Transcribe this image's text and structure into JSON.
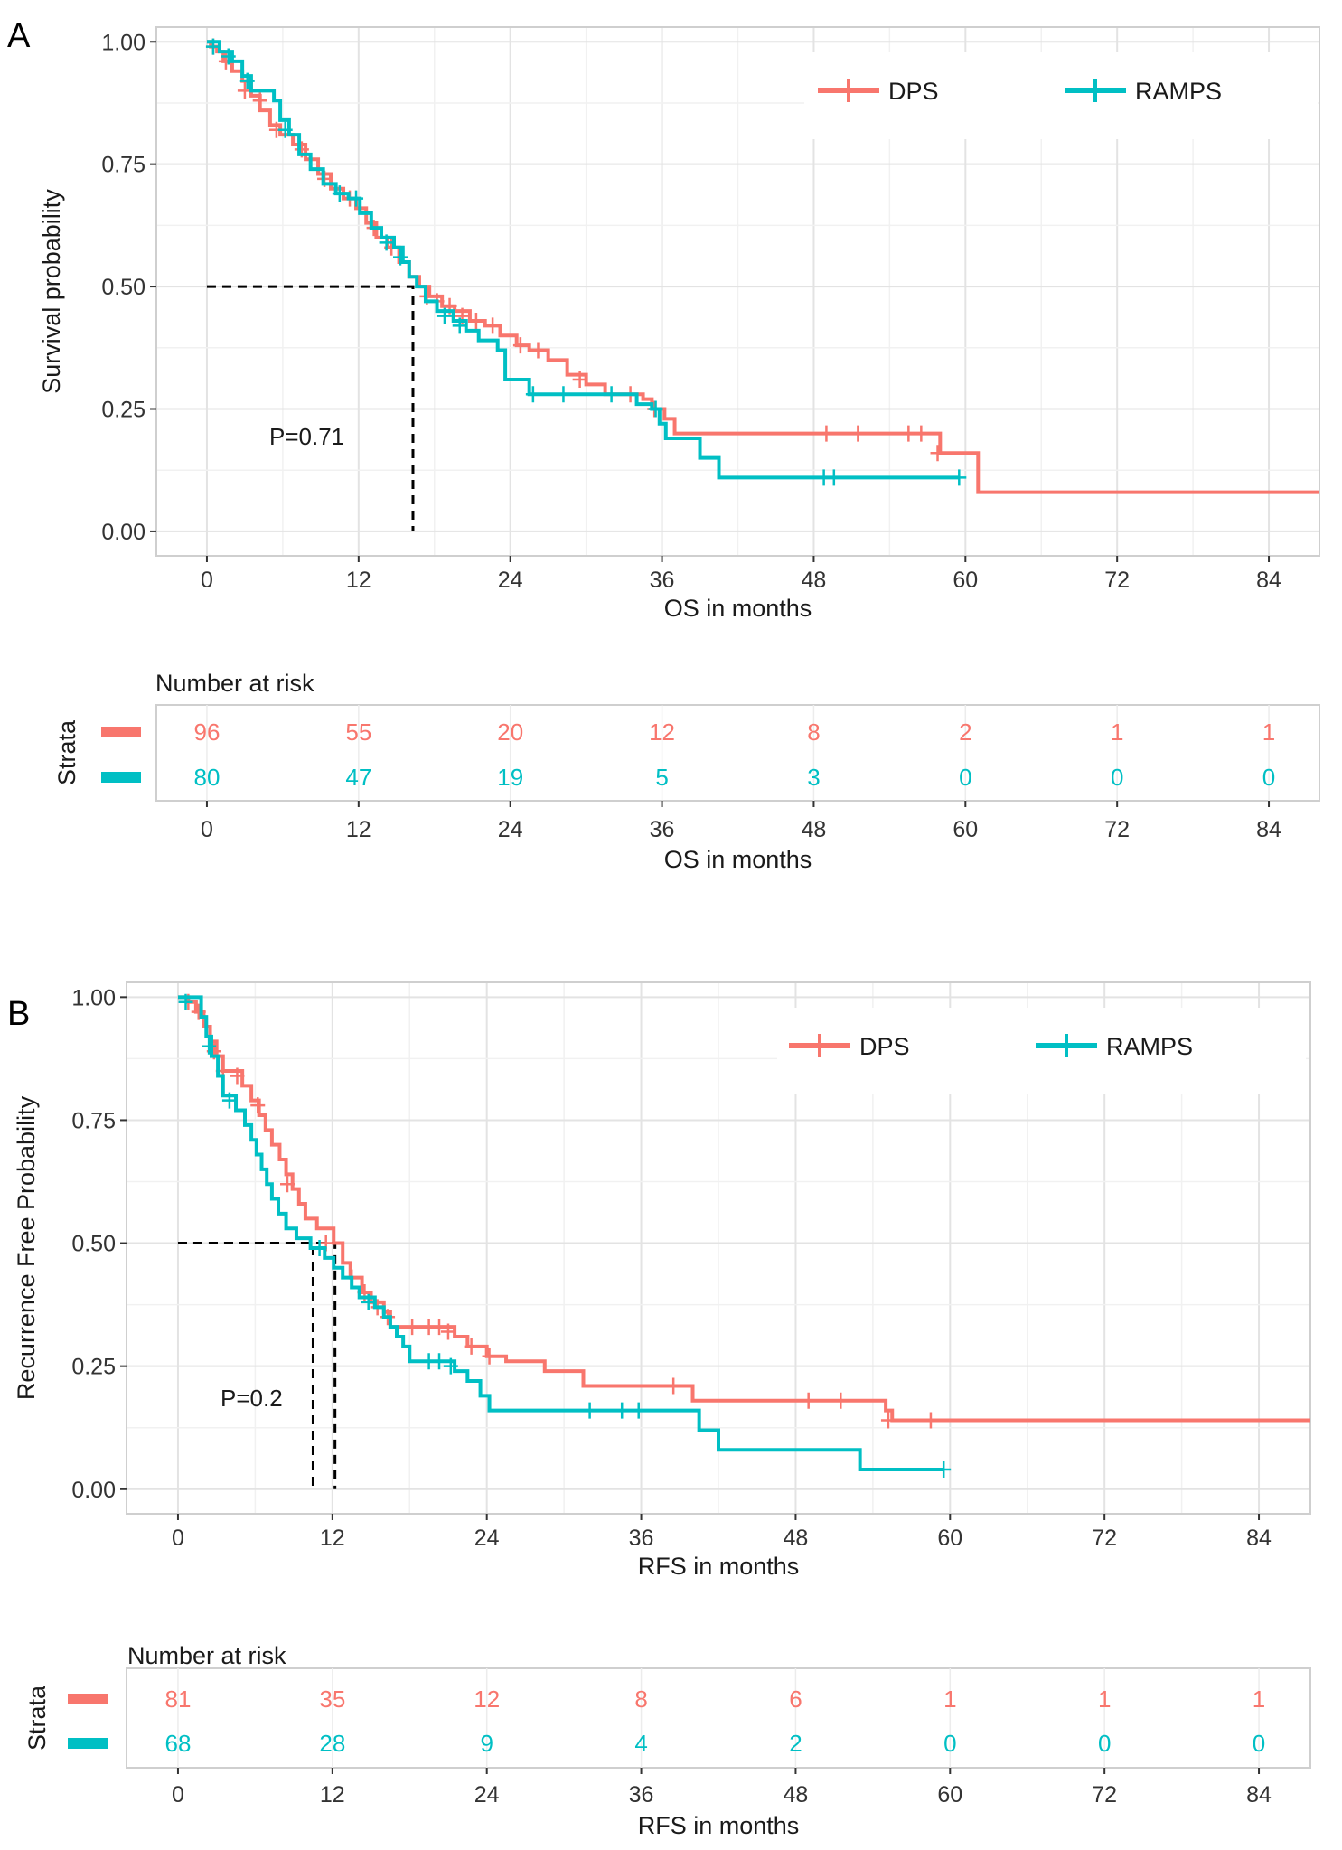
{
  "colors": {
    "dps": "#F8766D",
    "ramps": "#00BFC4"
  },
  "chart_data": [
    {
      "type": "line",
      "panel_label": "A",
      "ylabel": "Survival probability",
      "xlabel": "OS in months",
      "xticks": [
        0,
        12,
        24,
        36,
        48,
        60,
        72,
        84
      ],
      "yticks": [
        "0.00",
        "0.25",
        "0.50",
        "0.75",
        "1.00"
      ],
      "xlim": [
        -4,
        88
      ],
      "ylim": [
        -0.05,
        1.03
      ],
      "grid": true,
      "legend": "top-right",
      "pvalue": "P=0.71",
      "median_lines": [
        [
          16.3,
          0.5
        ]
      ],
      "series": [
        {
          "name": "DPS",
          "color_key": "dps",
          "steps": [
            [
              0,
              1.0
            ],
            [
              0.3,
              0.99
            ],
            [
              0.8,
              0.98
            ],
            [
              1.3,
              0.96
            ],
            [
              2,
              0.94
            ],
            [
              2.8,
              0.92
            ],
            [
              3.5,
              0.89
            ],
            [
              4.2,
              0.86
            ],
            [
              5,
              0.83
            ],
            [
              5.8,
              0.81
            ],
            [
              6.8,
              0.79
            ],
            [
              7.8,
              0.76
            ],
            [
              8.8,
              0.73
            ],
            [
              9.8,
              0.7
            ],
            [
              10.8,
              0.68
            ],
            [
              11.8,
              0.66
            ],
            [
              12.6,
              0.63
            ],
            [
              13.4,
              0.6
            ],
            [
              14.3,
              0.58
            ],
            [
              15.2,
              0.55
            ],
            [
              16,
              0.52
            ],
            [
              16.8,
              0.5
            ],
            [
              17.6,
              0.48
            ],
            [
              18.6,
              0.46
            ],
            [
              19.6,
              0.45
            ],
            [
              20.8,
              0.43
            ],
            [
              22,
              0.42
            ],
            [
              23.2,
              0.4
            ],
            [
              24.5,
              0.38
            ],
            [
              25.5,
              0.37
            ],
            [
              27,
              0.35
            ],
            [
              28.5,
              0.32
            ],
            [
              30,
              0.3
            ],
            [
              31.5,
              0.28
            ],
            [
              34.5,
              0.27
            ],
            [
              35.2,
              0.25
            ],
            [
              36.2,
              0.23
            ],
            [
              37,
              0.2
            ],
            [
              57.5,
              0.2
            ],
            [
              58,
              0.16
            ],
            [
              60.5,
              0.16
            ],
            [
              61,
              0.08
            ],
            [
              88,
              0.08
            ]
          ],
          "censors": [
            [
              0.5,
              0.99
            ],
            [
              1.5,
              0.96
            ],
            [
              3,
              0.9
            ],
            [
              4.2,
              0.88
            ],
            [
              5.5,
              0.82
            ],
            [
              7.5,
              0.78
            ],
            [
              9.3,
              0.72
            ],
            [
              11.3,
              0.68
            ],
            [
              13.2,
              0.62
            ],
            [
              14.6,
              0.58
            ],
            [
              17.4,
              0.48
            ],
            [
              18.2,
              0.47
            ],
            [
              19.2,
              0.46
            ],
            [
              20.2,
              0.44
            ],
            [
              21.3,
              0.43
            ],
            [
              22.6,
              0.42
            ],
            [
              24.8,
              0.38
            ],
            [
              26.2,
              0.37
            ],
            [
              29.5,
              0.31
            ],
            [
              33.5,
              0.28
            ],
            [
              35.4,
              0.25
            ],
            [
              49,
              0.2
            ],
            [
              51.5,
              0.2
            ],
            [
              55.5,
              0.2
            ],
            [
              56.5,
              0.2
            ],
            [
              57.8,
              0.16
            ]
          ]
        },
        {
          "name": "RAMPS",
          "color_key": "ramps",
          "steps": [
            [
              0,
              1.0
            ],
            [
              1,
              0.98
            ],
            [
              2,
              0.96
            ],
            [
              2.8,
              0.93
            ],
            [
              3.5,
              0.9
            ],
            [
              5.3,
              0.88
            ],
            [
              5.8,
              0.84
            ],
            [
              6.5,
              0.81
            ],
            [
              7.3,
              0.77
            ],
            [
              8.2,
              0.74
            ],
            [
              9.2,
              0.71
            ],
            [
              10.2,
              0.69
            ],
            [
              11.2,
              0.68
            ],
            [
              12.1,
              0.65
            ],
            [
              13,
              0.62
            ],
            [
              13.8,
              0.6
            ],
            [
              14.8,
              0.58
            ],
            [
              15.5,
              0.55
            ],
            [
              16,
              0.52
            ],
            [
              16.6,
              0.5
            ],
            [
              17.3,
              0.47
            ],
            [
              18.2,
              0.45
            ],
            [
              19.5,
              0.43
            ],
            [
              20.5,
              0.41
            ],
            [
              21.5,
              0.39
            ],
            [
              23,
              0.37
            ],
            [
              23.6,
              0.31
            ],
            [
              25.5,
              0.28
            ],
            [
              33,
              0.28
            ],
            [
              34,
              0.26
            ],
            [
              35.2,
              0.25
            ],
            [
              35.8,
              0.22
            ],
            [
              36.3,
              0.19
            ],
            [
              39,
              0.15
            ],
            [
              40.5,
              0.11
            ],
            [
              59.5,
              0.11
            ]
          ],
          "censors": [
            [
              0.5,
              0.99
            ],
            [
              1.7,
              0.97
            ],
            [
              3.2,
              0.92
            ],
            [
              6.2,
              0.82
            ],
            [
              10.5,
              0.69
            ],
            [
              11.8,
              0.68
            ],
            [
              14.2,
              0.59
            ],
            [
              15.3,
              0.56
            ],
            [
              18.8,
              0.44
            ],
            [
              20,
              0.42
            ],
            [
              25.8,
              0.28
            ],
            [
              28.2,
              0.28
            ],
            [
              32,
              0.28
            ],
            [
              35.5,
              0.25
            ],
            [
              48.8,
              0.11
            ],
            [
              49.6,
              0.11
            ],
            [
              59.5,
              0.11
            ]
          ]
        }
      ],
      "risk_table": {
        "title": "Number at risk",
        "ylabel": "Strata",
        "times": [
          0,
          12,
          24,
          36,
          48,
          60,
          72,
          84
        ],
        "rows": [
          {
            "name": "DPS",
            "color_key": "dps",
            "values": [
              "96",
              "55",
              "20",
              "12",
              "8",
              "2",
              "1",
              "1"
            ]
          },
          {
            "name": "RAMPS",
            "color_key": "ramps",
            "values": [
              "80",
              "47",
              "19",
              "5",
              "3",
              "0",
              "0",
              "0"
            ]
          }
        ],
        "xlabel": "OS in months"
      }
    },
    {
      "type": "line",
      "panel_label": "B",
      "ylabel": "Recurrence Free Probability",
      "xlabel": "RFS in months",
      "xticks": [
        0,
        12,
        24,
        36,
        48,
        60,
        72,
        84
      ],
      "yticks": [
        "0.00",
        "0.25",
        "0.50",
        "0.75",
        "1.00"
      ],
      "xlim": [
        -4,
        88
      ],
      "ylim": [
        -0.05,
        1.03
      ],
      "grid": true,
      "legend": "top-right",
      "pvalue": "P=0.2",
      "median_lines": [
        [
          10.5,
          0.5
        ],
        [
          12.2,
          0.5
        ]
      ],
      "series": [
        {
          "name": "DPS",
          "color_key": "dps",
          "steps": [
            [
              0,
              1.0
            ],
            [
              0.8,
              0.99
            ],
            [
              1.4,
              0.97
            ],
            [
              2,
              0.94
            ],
            [
              2.5,
              0.91
            ],
            [
              3,
              0.88
            ],
            [
              3.5,
              0.85
            ],
            [
              5,
              0.82
            ],
            [
              5.7,
              0.79
            ],
            [
              6.3,
              0.76
            ],
            [
              6.8,
              0.73
            ],
            [
              7.3,
              0.7
            ],
            [
              7.9,
              0.67
            ],
            [
              8.4,
              0.64
            ],
            [
              8.9,
              0.61
            ],
            [
              9.4,
              0.58
            ],
            [
              9.9,
              0.55
            ],
            [
              10.8,
              0.53
            ],
            [
              12.1,
              0.5
            ],
            [
              12.8,
              0.46
            ],
            [
              13.4,
              0.43
            ],
            [
              14.3,
              0.4
            ],
            [
              15,
              0.38
            ],
            [
              16,
              0.36
            ],
            [
              16.5,
              0.33
            ],
            [
              21.5,
              0.31
            ],
            [
              22.5,
              0.29
            ],
            [
              24,
              0.27
            ],
            [
              25.5,
              0.26
            ],
            [
              28.5,
              0.24
            ],
            [
              31.5,
              0.21
            ],
            [
              40,
              0.18
            ],
            [
              55,
              0.16
            ],
            [
              55.5,
              0.14
            ],
            [
              88,
              0.14
            ]
          ],
          "censors": [
            [
              0.8,
              0.99
            ],
            [
              1.6,
              0.97
            ],
            [
              2.8,
              0.89
            ],
            [
              3.5,
              0.85
            ],
            [
              4.6,
              0.84
            ],
            [
              6.2,
              0.78
            ],
            [
              8.5,
              0.62
            ],
            [
              11.5,
              0.5
            ],
            [
              13.5,
              0.43
            ],
            [
              14.5,
              0.4
            ],
            [
              15.5,
              0.37
            ],
            [
              16.3,
              0.35
            ],
            [
              18.2,
              0.33
            ],
            [
              19.5,
              0.33
            ],
            [
              20.3,
              0.33
            ],
            [
              21,
              0.32
            ],
            [
              22.8,
              0.29
            ],
            [
              24.2,
              0.27
            ],
            [
              38.5,
              0.21
            ],
            [
              49,
              0.18
            ],
            [
              51.5,
              0.18
            ],
            [
              55.2,
              0.14
            ],
            [
              58.5,
              0.14
            ]
          ]
        },
        {
          "name": "RAMPS",
          "color_key": "ramps",
          "steps": [
            [
              0,
              1.0
            ],
            [
              1.8,
              0.96
            ],
            [
              2.2,
              0.92
            ],
            [
              2.6,
              0.88
            ],
            [
              3.1,
              0.84
            ],
            [
              3.5,
              0.8
            ],
            [
              4.5,
              0.77
            ],
            [
              5.2,
              0.74
            ],
            [
              5.7,
              0.71
            ],
            [
              6.1,
              0.68
            ],
            [
              6.5,
              0.65
            ],
            [
              6.9,
              0.62
            ],
            [
              7.3,
              0.59
            ],
            [
              7.8,
              0.56
            ],
            [
              8.4,
              0.53
            ],
            [
              9.2,
              0.51
            ],
            [
              10.3,
              0.49
            ],
            [
              11.4,
              0.47
            ],
            [
              12.1,
              0.45
            ],
            [
              12.8,
              0.43
            ],
            [
              13.5,
              0.41
            ],
            [
              14.1,
              0.39
            ],
            [
              15.3,
              0.37
            ],
            [
              16,
              0.35
            ],
            [
              16.5,
              0.33
            ],
            [
              17,
              0.31
            ],
            [
              17.5,
              0.29
            ],
            [
              18,
              0.26
            ],
            [
              21.5,
              0.24
            ],
            [
              22.5,
              0.22
            ],
            [
              23.5,
              0.19
            ],
            [
              24.2,
              0.16
            ],
            [
              40,
              0.16
            ],
            [
              40.5,
              0.12
            ],
            [
              42,
              0.08
            ],
            [
              52.5,
              0.08
            ],
            [
              53,
              0.04
            ],
            [
              59.5,
              0.04
            ]
          ],
          "censors": [
            [
              0.6,
              0.99
            ],
            [
              2.4,
              0.9
            ],
            [
              4,
              0.79
            ],
            [
              11,
              0.49
            ],
            [
              14.8,
              0.38
            ],
            [
              19.5,
              0.26
            ],
            [
              20.3,
              0.26
            ],
            [
              21.2,
              0.25
            ],
            [
              32,
              0.16
            ],
            [
              34.5,
              0.16
            ],
            [
              35.8,
              0.16
            ],
            [
              59.5,
              0.04
            ]
          ]
        }
      ],
      "risk_table": {
        "title": "Number at risk",
        "ylabel": "Strata",
        "times": [
          0,
          12,
          24,
          36,
          48,
          60,
          72,
          84
        ],
        "rows": [
          {
            "name": "DPS",
            "color_key": "dps",
            "values": [
              "81",
              "35",
              "12",
              "8",
              "6",
              "1",
              "1",
              "1"
            ]
          },
          {
            "name": "RAMPS",
            "color_key": "ramps",
            "values": [
              "68",
              "28",
              "9",
              "4",
              "2",
              "0",
              "0",
              "0"
            ]
          }
        ],
        "xlabel": "RFS in months"
      }
    }
  ]
}
